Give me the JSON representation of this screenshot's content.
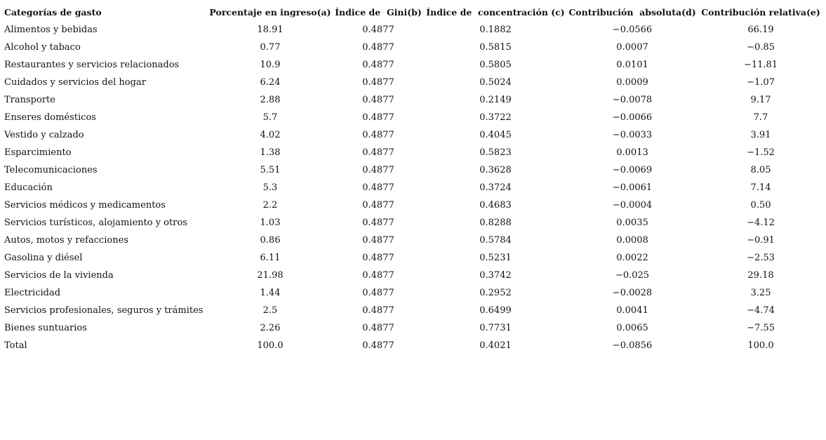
{
  "table": {
    "header": [
      "Categorías de gasto",
      "Porcentaje en ingreso(a)",
      "Índice de  Gini(b)",
      "Índice de  concentración (c)",
      "Contribución  absoluta(d)",
      "Contribución relativa(e)"
    ],
    "rows": [
      [
        "Alimentos y bebidas",
        "18.91",
        "0.4877",
        "0.1882",
        "−0.0566",
        "66.19"
      ],
      [
        "Alcohol y tabaco",
        "0.77",
        "0.4877",
        "0.5815",
        "0.0007",
        "−0.85"
      ],
      [
        "Restaurantes y servicios relacionados",
        "10.9",
        "0.4877",
        "0.5805",
        "0.0101",
        "−11.81"
      ],
      [
        "Cuidados y servicios del hogar",
        "6.24",
        "0.4877",
        "0.5024",
        "0.0009",
        "−1.07"
      ],
      [
        "Transporte",
        "2.88",
        "0.4877",
        "0.2149",
        "−0.0078",
        "9.17"
      ],
      [
        "Enseres domésticos",
        "5.7",
        "0.4877",
        "0.3722",
        "−0.0066",
        "7.7"
      ],
      [
        "Vestido y calzado",
        "4.02",
        "0.4877",
        "0.4045",
        "−0.0033",
        "3.91"
      ],
      [
        "Esparcimiento",
        "1.38",
        "0.4877",
        "0.5823",
        "0.0013",
        "−1.52"
      ],
      [
        "Telecomunicaciones",
        "5.51",
        "0.4877",
        "0.3628",
        "−0.0069",
        "8.05"
      ],
      [
        "Educación",
        "5.3",
        "0.4877",
        "0.3724",
        "−0.0061",
        "7.14"
      ],
      [
        "Servicios médicos y medicamentos",
        "2.2",
        "0.4877",
        "0.4683",
        "−0.0004",
        "0.50"
      ],
      [
        "Servicios turísticos, alojamiento y otros",
        "1.03",
        "0.4877",
        "0.8288",
        "0.0035",
        "−4.12"
      ],
      [
        "Autos, motos y refacciones",
        "0.86",
        "0.4877",
        "0.5784",
        "0.0008",
        "−0.91"
      ],
      [
        "Gasolina y diésel",
        "6.11",
        "0.4877",
        "0.5231",
        "0.0022",
        "−2.53"
      ],
      [
        "Servicios de la vivienda",
        "21.98",
        "0.4877",
        "0.3742",
        "−0.025",
        "29.18"
      ],
      [
        "Electricidad",
        "1.44",
        "0.4877",
        "0.2952",
        "−0.0028",
        "3.25"
      ],
      [
        "Servicios profesionales, seguros y trámites",
        "2.5",
        "0.4877",
        "0.6499",
        "0.0041",
        "−4.74"
      ],
      [
        "Bienes suntuarios",
        "2.26",
        "0.4877",
        "0.7731",
        "0.0065",
        "−7.55"
      ],
      [
        "Total",
        "100.0",
        "0.4877",
        "0.4021",
        "−0.0856",
        "100.0"
      ]
    ]
  }
}
